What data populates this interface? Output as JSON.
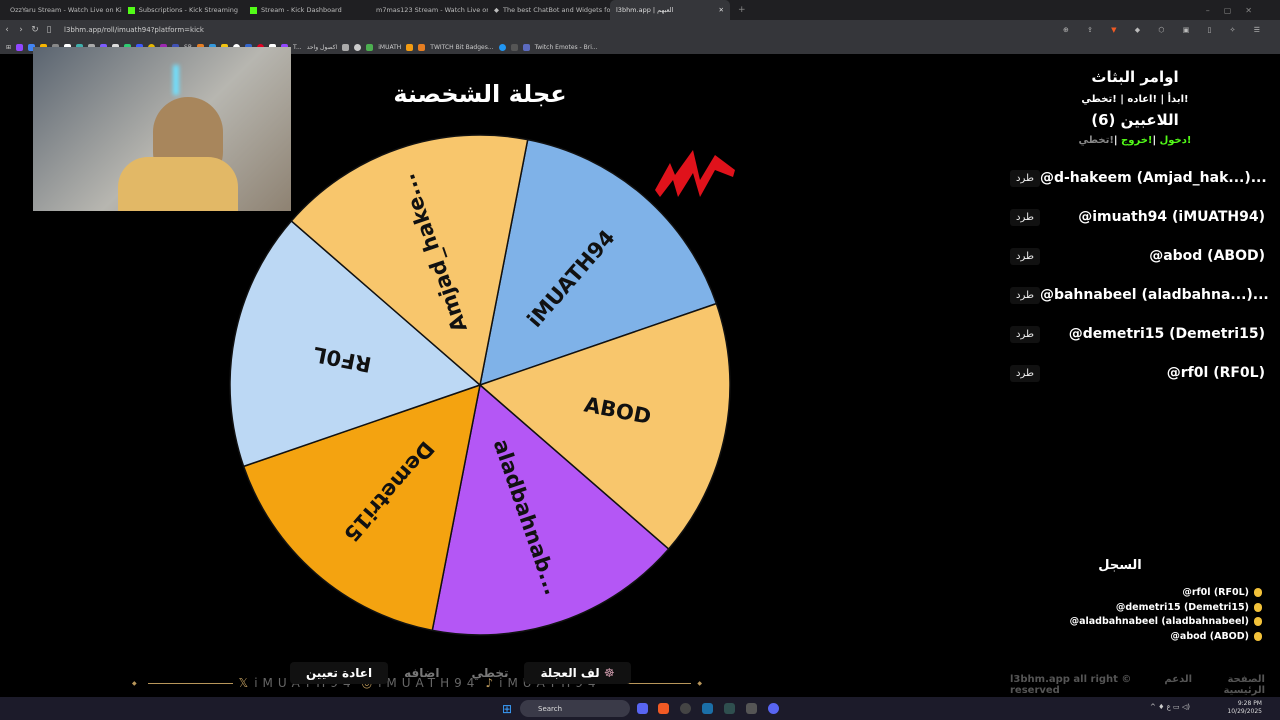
{
  "browser": {
    "tabs": [
      {
        "label": "OzzYaru Stream - Watch Live on Kick"
      },
      {
        "label": "Subscriptions - Kick Streaming"
      },
      {
        "label": "Stream - Kick Dashboard"
      },
      {
        "label": "m7mas123 Stream - Watch Live on Kick"
      },
      {
        "label": "The best ChatBot and Widgets for Kick"
      },
      {
        "label": "l3bhm.app | العبهم",
        "active": true
      }
    ],
    "url": "l3bhm.app/roll/imuath94?platform=kick",
    "bookmarks": [
      "SR",
      "T...",
      "اكصول واحد",
      "iMUATH",
      "TWITCH Bit Badges...",
      "Twitch Emotes - Bri..."
    ]
  },
  "page": {
    "title": "عجلة الشخصنة",
    "wheel": {
      "segments": [
        {
          "label": "iMUATH94",
          "color": "#7fb2e8"
        },
        {
          "label": "ABOD",
          "color": "#f8c66c"
        },
        {
          "label": "aladbahnab...",
          "color": "#b457f5"
        },
        {
          "label": "Demetri15",
          "color": "#f4a310"
        },
        {
          "label": "RF0L",
          "color": "#bcd8f4"
        },
        {
          "label": "Amjad_hake...",
          "color": "#f8c66c"
        }
      ]
    },
    "panel": {
      "streamer_commands_title": "اوامر البثاث",
      "streamer_commands": "!ابدأ | !اعاده | !تخطي",
      "players_title": "اللاعبين (6)",
      "player_cmd_join": "!دخول",
      "player_cmd_exit": "!خروج",
      "player_cmd_skip": "!تخطي",
      "kick_label": "طرد",
      "players": [
        {
          "name": "@d-hakeem (Amjad_hak...)..."
        },
        {
          "name": "@imuath94 (iMUATH94)"
        },
        {
          "name": "@abod (ABOD)"
        },
        {
          "name": "@bahnabeel (aladbahna...)..."
        },
        {
          "name": "@demetri15 (Demetri15)"
        },
        {
          "name": "@rf0l (RF0L)"
        }
      ]
    },
    "log": {
      "title": "السجل",
      "items": [
        "@rf0l (RF0L)",
        "@demetri15 (Demetri15)",
        "@aladbahnabeel (aladbahnabeel)",
        "@abod (ABOD)"
      ]
    },
    "controls": {
      "spin": "لف العجلة",
      "skip": "تخطي",
      "add": "اضافه",
      "reset": "اعادة تعيين"
    },
    "watermark": "iMUATH94",
    "footer": {
      "home": "الصفحة الرئيسية",
      "support": "الدعم",
      "copyright": "l3bhm.app all right © reserved"
    }
  },
  "taskbar": {
    "search": "Search",
    "time": "9:28 PM",
    "date": "10/29/2025"
  }
}
